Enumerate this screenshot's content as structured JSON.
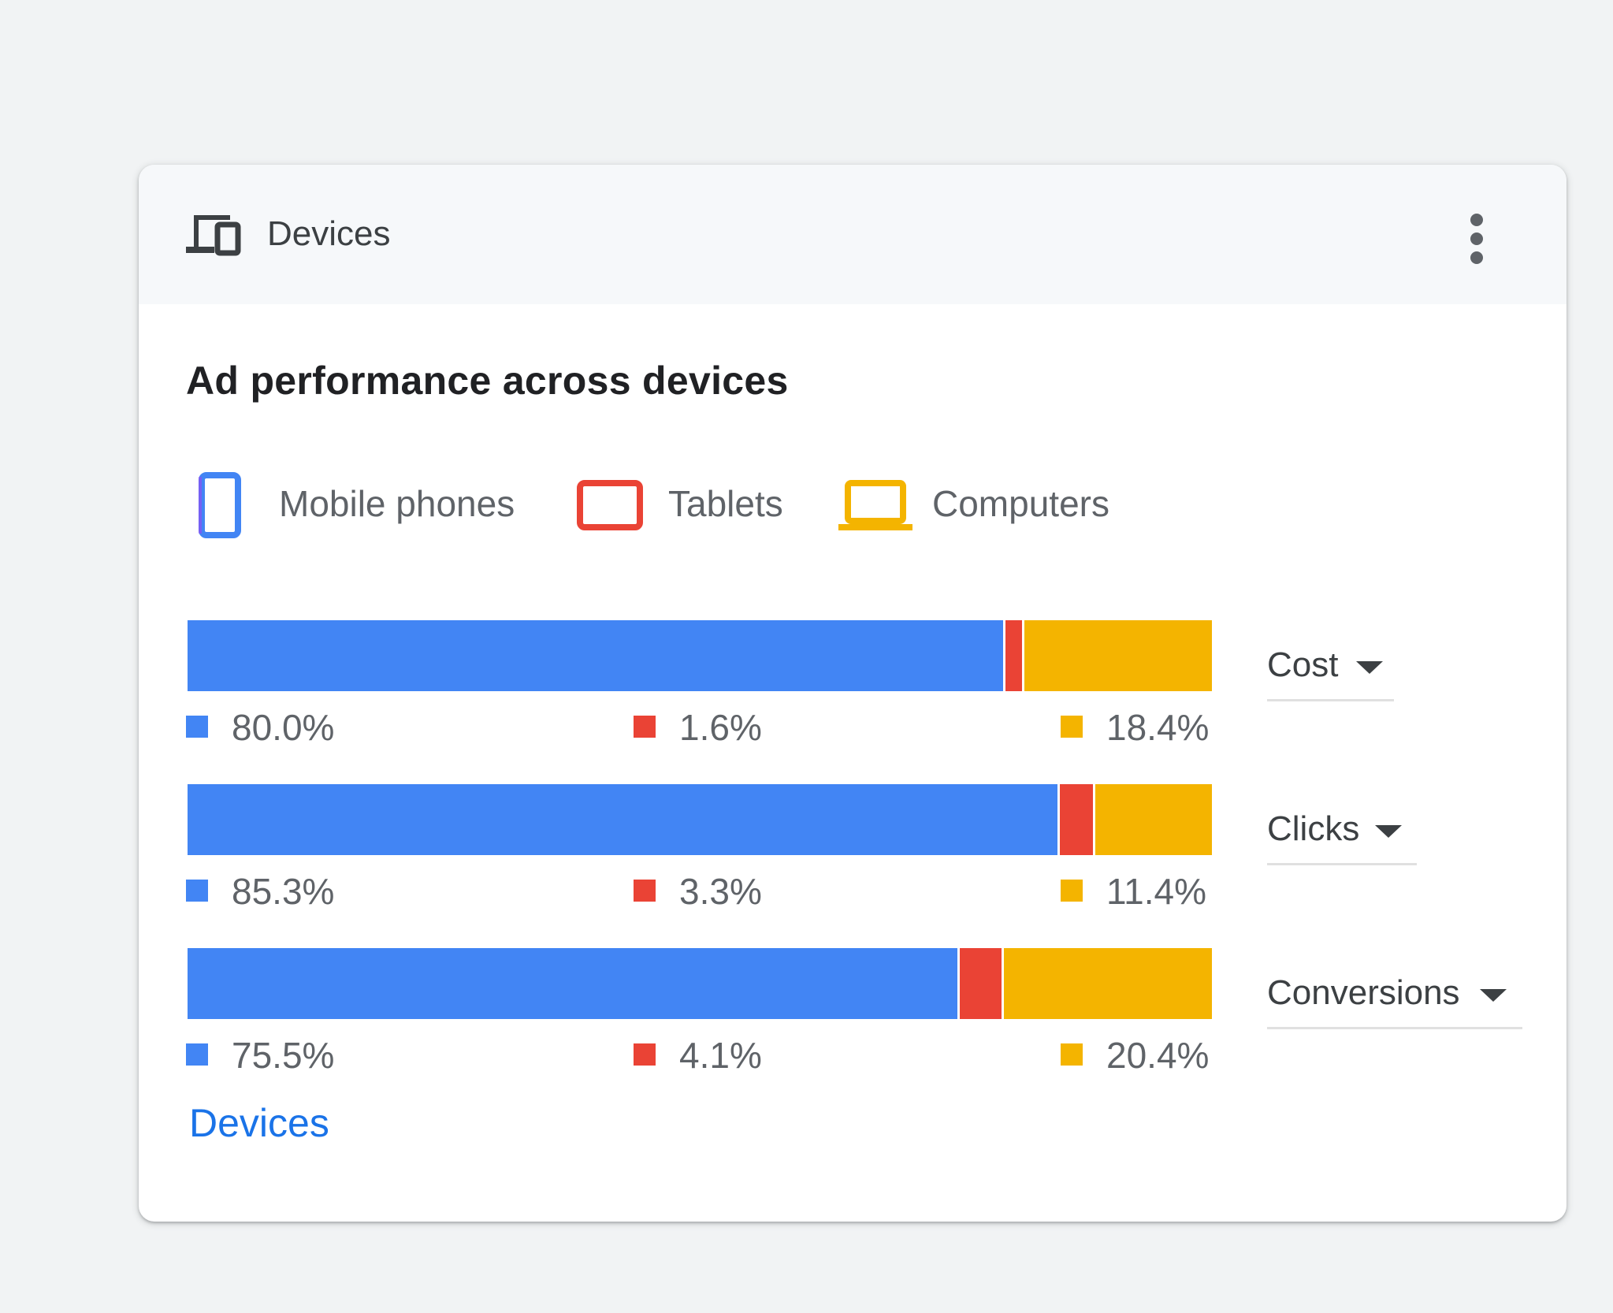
{
  "card": {
    "header_title": "Devices",
    "header_icon": "devices-icon",
    "menu_icon": "more-vert-icon",
    "subtitle": "Ad performance across devices",
    "footer_link": "Devices"
  },
  "legend": [
    {
      "label": "Mobile phones",
      "icon": "smartphone-icon",
      "color": "#4285f4"
    },
    {
      "label": "Tablets",
      "icon": "tablet-icon",
      "color": "#ea4335"
    },
    {
      "label": "Computers",
      "icon": "laptop-icon",
      "color": "#fbbc04"
    }
  ],
  "colors": {
    "mobile": "#4285f4",
    "tablet": "#ea4335",
    "computer": "#f4b400",
    "link": "#1a73e8"
  },
  "chart_data": {
    "type": "bar",
    "stacked": true,
    "orientation": "horizontal",
    "categories": [
      "Cost",
      "Clicks",
      "Conversions"
    ],
    "series": [
      {
        "name": "Mobile phones",
        "values": [
          80.0,
          85.3,
          75.5
        ],
        "labels": [
          "80.0%",
          "85.3%",
          "75.5%"
        ]
      },
      {
        "name": "Tablets",
        "values": [
          1.6,
          3.3,
          4.1
        ],
        "labels": [
          "1.6%",
          "3.3%",
          "4.1%"
        ]
      },
      {
        "name": "Computers",
        "values": [
          18.4,
          11.4,
          20.4
        ],
        "labels": [
          "18.4%",
          "11.4%",
          "20.4%"
        ]
      }
    ],
    "title": "Ad performance across devices",
    "legend_position": "top",
    "grid": false
  },
  "rows": [
    {
      "metric": "Cost"
    },
    {
      "metric": "Clicks"
    },
    {
      "metric": "Conversions"
    }
  ]
}
